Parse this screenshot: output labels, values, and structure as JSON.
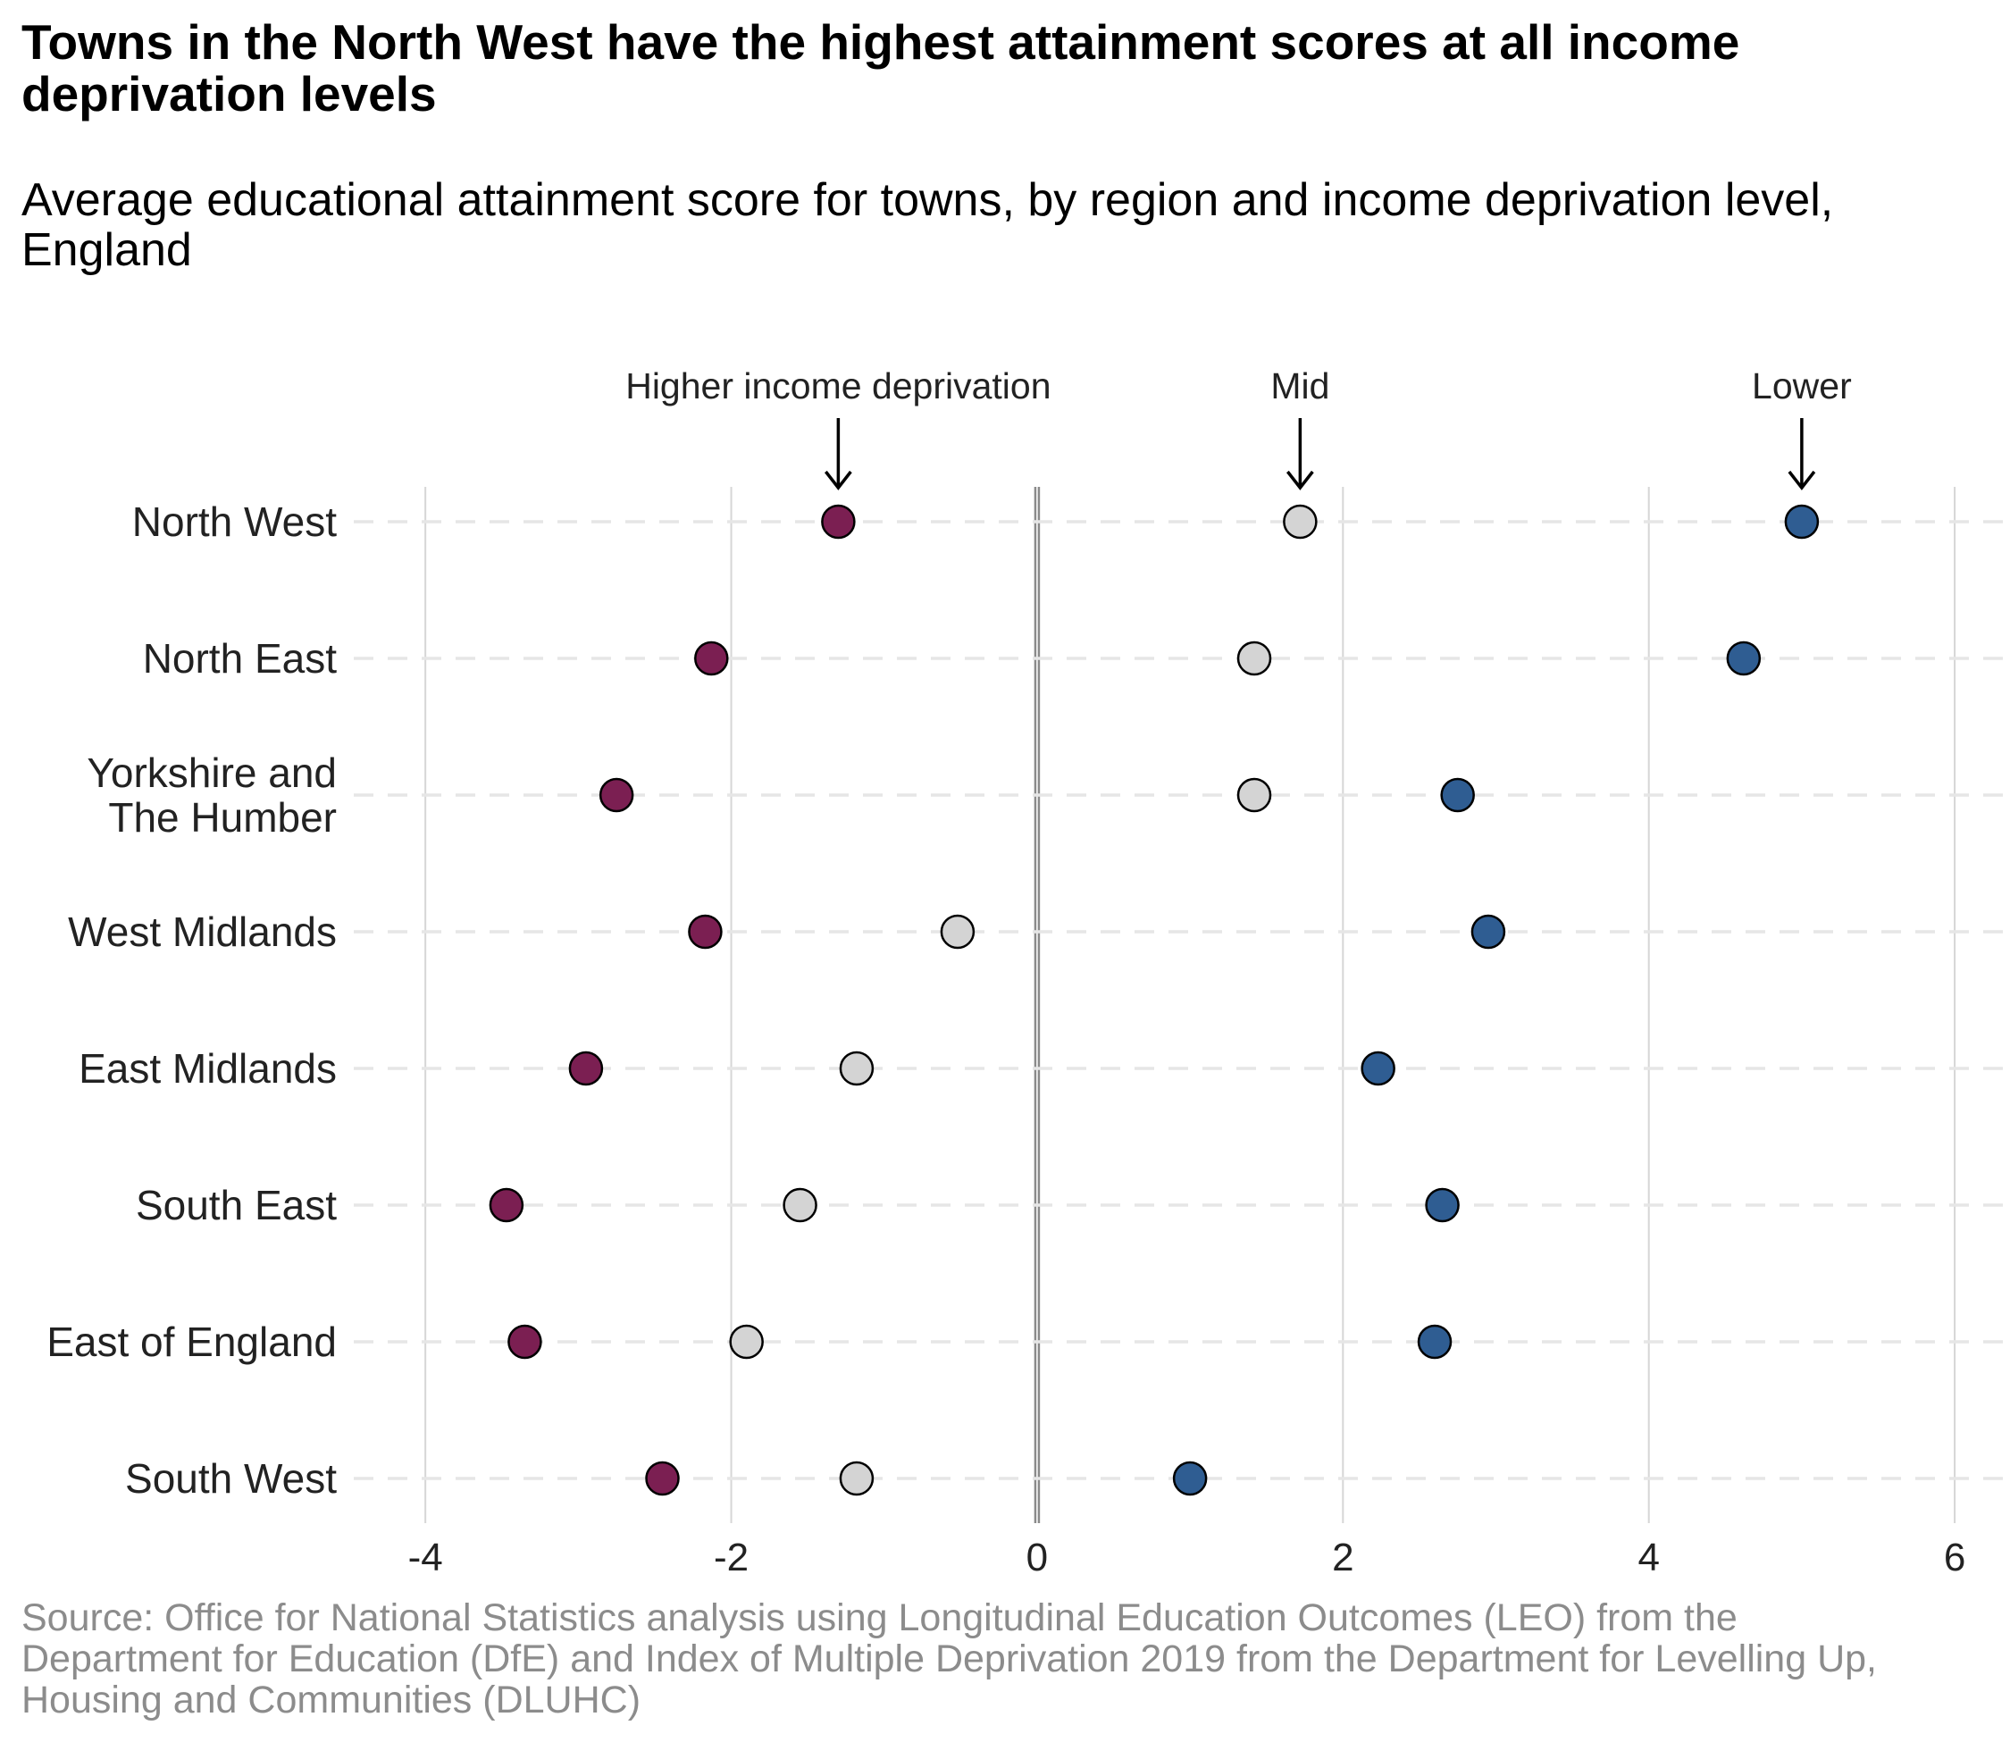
{
  "title": "Towns in the North West have the highest attainment scores at all income deprivation levels",
  "subtitle": "Average educational attainment score for towns, by region and income deprivation level, England",
  "source": "Source: Office for National Statistics analysis using Longitudinal Education Outcomes (LEO) from the Department for Education (DfE) and Index of Multiple Deprivation 2019 from the Department for Levelling Up, Housing and Communities (DLUHC)",
  "colors": {
    "higher": "#7b1f52",
    "mid": "#d4d4d4",
    "lower": "#2f5d92",
    "grid": "#d6d6d6",
    "dashed": "#e6e6e6",
    "zero_line": "#8a8a8a",
    "text": "#222222"
  },
  "chart_data": {
    "type": "scatter",
    "orientation": "horizontal-dot-plot",
    "categories": [
      "North West",
      "North East",
      "Yorkshire and The Humber",
      "West Midlands",
      "East Midlands",
      "South East",
      "East of England",
      "South West"
    ],
    "category_labels": [
      [
        "North West"
      ],
      [
        "North East"
      ],
      [
        "Yorkshire and",
        "The Humber"
      ],
      [
        "West Midlands"
      ],
      [
        "East Midlands"
      ],
      [
        "South East"
      ],
      [
        "East of England"
      ],
      [
        "South West"
      ]
    ],
    "series": [
      {
        "name": "Higher income deprivation",
        "color_key": "higher",
        "values": [
          -1.3,
          -2.13,
          -2.75,
          -2.17,
          -2.95,
          -3.47,
          -3.35,
          -2.45
        ]
      },
      {
        "name": "Mid",
        "color_key": "mid",
        "values": [
          1.72,
          1.42,
          1.42,
          -0.52,
          -1.18,
          -1.55,
          -1.9,
          -1.18
        ]
      },
      {
        "name": "Lower",
        "color_key": "lower",
        "values": [
          5.0,
          4.62,
          2.75,
          2.95,
          2.23,
          2.65,
          2.6,
          1.0
        ]
      }
    ],
    "annotations": [
      {
        "text": "Higher income deprivation",
        "series": 0
      },
      {
        "text": "Mid",
        "series": 1
      },
      {
        "text": "Lower",
        "series": 2
      }
    ],
    "xlim": [
      -4.55,
      6.35
    ],
    "xticks": [
      -4,
      -2,
      0,
      2,
      4,
      6
    ],
    "xtick_labels": [
      "-4",
      "-2",
      "0",
      "2",
      "4",
      "6"
    ],
    "xlabel": "",
    "ylabel": "",
    "grid": true,
    "legend": "none (direct labels with arrows above top row)"
  }
}
